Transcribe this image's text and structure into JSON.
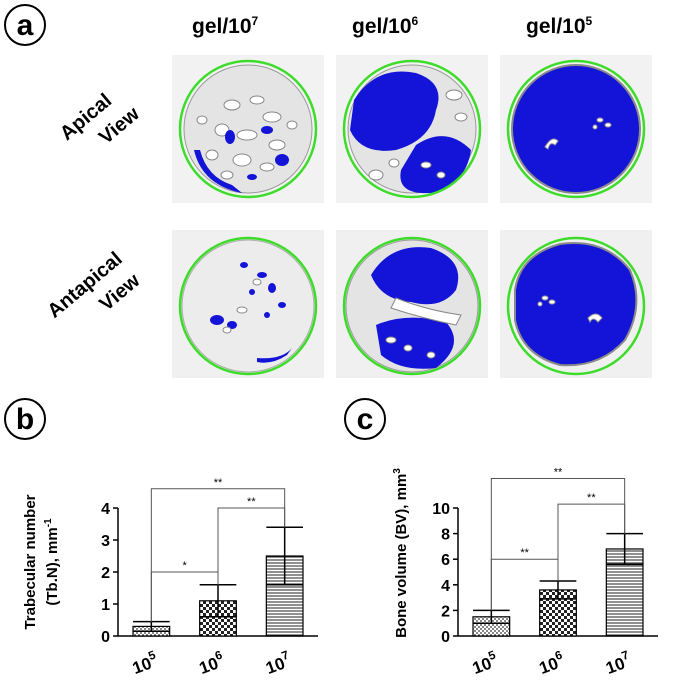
{
  "panel_a": {
    "letter": "a",
    "columns": [
      {
        "base": "gel/10",
        "exp": "7"
      },
      {
        "base": "gel/10",
        "exp": "6"
      },
      {
        "base": "gel/10",
        "exp": "5"
      }
    ],
    "rows": [
      {
        "line1": "Apical",
        "line2": "View"
      },
      {
        "line1": "Antapical",
        "line2": "View"
      }
    ],
    "colors": {
      "bone": "#1414d8",
      "ring": "#3ddc2a",
      "background": "#f4f4f4"
    }
  },
  "panel_b": {
    "letter": "b"
  },
  "panel_c": {
    "letter": "c"
  },
  "chart_data": [
    {
      "type": "bar",
      "ylabel_line1": "Trabecular number",
      "ylabel_line2": "(Tb.N), mm",
      "ylabel_sup": "-1",
      "categories": [
        {
          "base": "10",
          "exp": "5"
        },
        {
          "base": "10",
          "exp": "6"
        },
        {
          "base": "10",
          "exp": "7"
        }
      ],
      "values": [
        0.3,
        1.1,
        2.5
      ],
      "errors": [
        0.15,
        0.5,
        0.9
      ],
      "patterns": [
        "dots",
        "checker",
        "hlines"
      ],
      "ylim": [
        0,
        4
      ],
      "yticks": [
        "0",
        "1",
        "2",
        "3",
        "4"
      ],
      "significance": [
        {
          "from": 0,
          "to": 1,
          "label": "*"
        },
        {
          "from": 0,
          "to": 2,
          "label": "**"
        },
        {
          "from": 1,
          "to": 2,
          "label": "**"
        }
      ]
    },
    {
      "type": "bar",
      "ylabel_line1": "Bone volume (BV), mm",
      "ylabel_sup": "3",
      "categories": [
        {
          "base": "10",
          "exp": "5"
        },
        {
          "base": "10",
          "exp": "6"
        },
        {
          "base": "10",
          "exp": "7"
        }
      ],
      "values": [
        1.5,
        3.6,
        6.8
      ],
      "errors": [
        0.5,
        0.7,
        1.2
      ],
      "patterns": [
        "dots",
        "checker",
        "hlines"
      ],
      "ylim": [
        0,
        10
      ],
      "yticks": [
        "0",
        "2",
        "4",
        "6",
        "8",
        "10"
      ],
      "significance": [
        {
          "from": 0,
          "to": 1,
          "label": "**"
        },
        {
          "from": 0,
          "to": 2,
          "label": "**"
        },
        {
          "from": 1,
          "to": 2,
          "label": "**"
        }
      ]
    }
  ]
}
